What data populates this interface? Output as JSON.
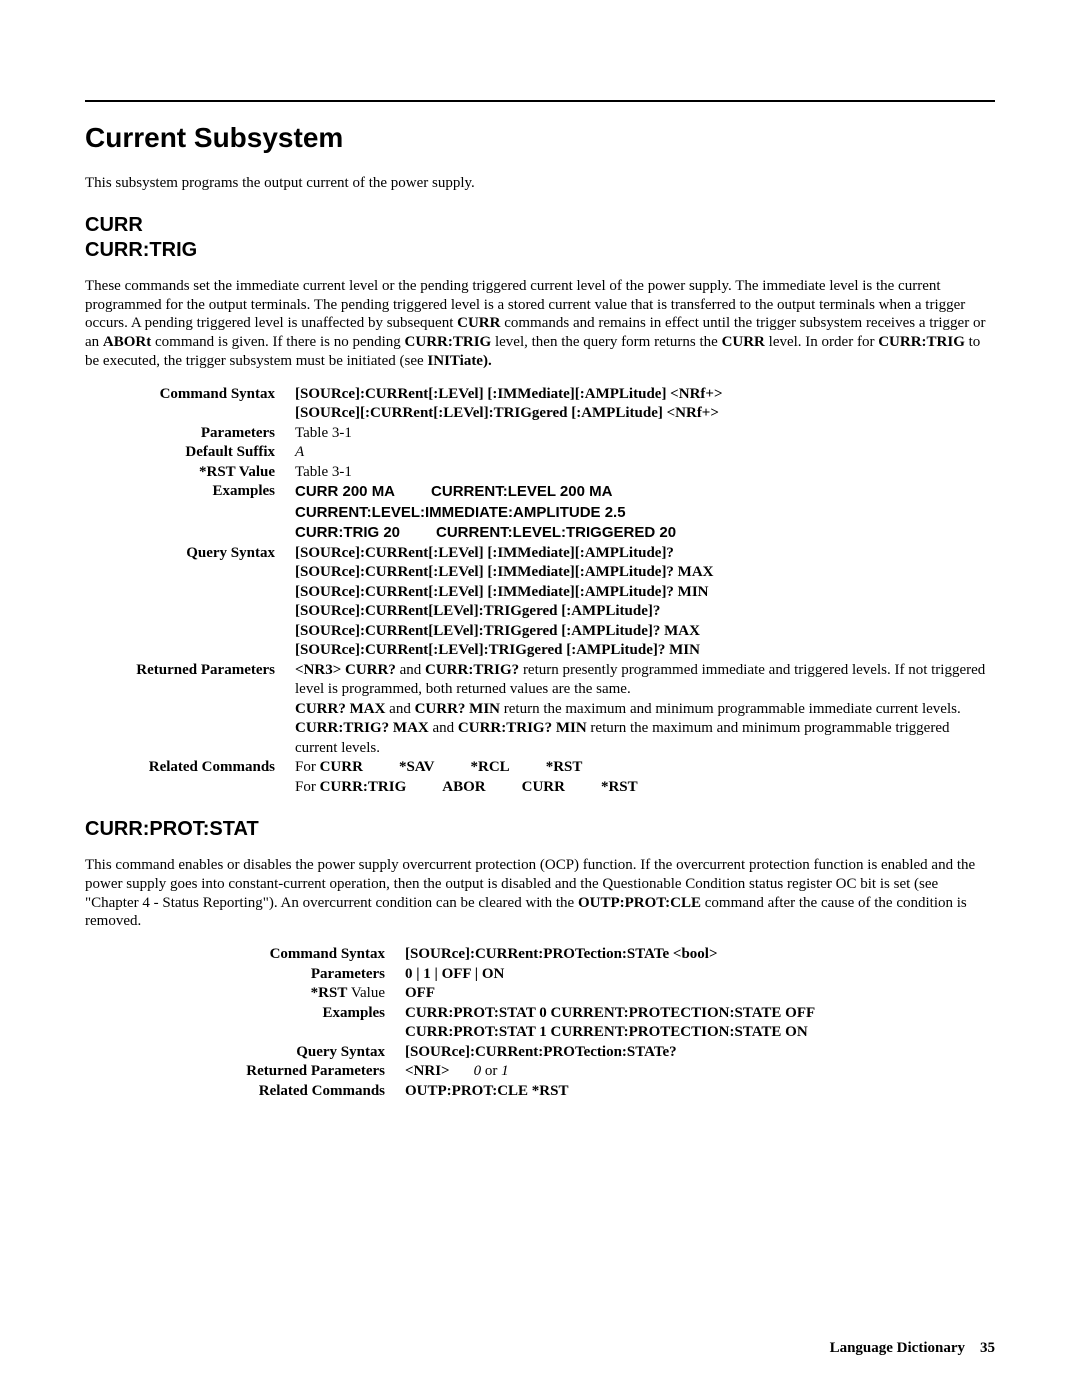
{
  "h1": "Current Subsystem",
  "intro": "This subsystem programs the output current of the power supply.",
  "sec1": {
    "h2a": "CURR",
    "h2b": "CURR:TRIG",
    "para_parts": [
      "These commands set the immediate current level or the pending triggered current level of the power supply.  The immediate level is the current programmed for the output terminals.  The pending triggered level is a stored current value that is transferred to the output terminals when a trigger occurs.  A pending triggered level is unaffected by subsequent ",
      "CURR",
      " commands and remains in effect until the trigger subsystem receives a trigger or an ",
      "ABORt",
      " command is given.  If there is no pending ",
      "CURR:TRIG",
      " level, then the query form returns the ",
      "CURR",
      " level.  In order for ",
      "CURR:TRIG",
      " to be executed, the trigger subsystem must be initiated (see ",
      "INITiate)."
    ],
    "rows": {
      "command_syntax_label": "Command Syntax",
      "command_syntax_1": "[SOURce]:CURRent[:LEVel] [:IMMediate][:AMPLitude] <NRf+>",
      "command_syntax_2": "[SOURce][:CURRent[:LEVel]:TRIGgered [:AMPLitude] <NRf+>",
      "parameters_label": "Parameters",
      "parameters_val": "Table 3-1",
      "default_suffix_label": "Default Suffix",
      "default_suffix_val": "A",
      "rst_label": "*RST Value",
      "rst_val": "Table 3-1",
      "examples_label": "Examples",
      "ex1a": "CURR 200 MA",
      "ex1b": "CURRENT:LEVEL 200 MA",
      "ex2": "CURRENT:LEVEL:IMMEDIATE:AMPLITUDE 2.5",
      "ex3a": "CURR:TRIG 20",
      "ex3b": "CURRENT:LEVEL:TRIGGERED 20",
      "query_label": "Query Syntax",
      "q1": "[SOURce]:CURRent[:LEVel] [:IMMediate][:AMPLitude]?",
      "q2": "[SOURce]:CURRent[:LEVel] [:IMMediate][:AMPLitude]?  MAX",
      "q3": "[SOURce]:CURRent[:LEVel] [:IMMediate][:AMPLitude]?  MIN",
      "q4": "[SOURce]:CURRent[LEVel]:TRIGgered [:AMPLitude]?",
      "q5": "[SOURce]:CURRent[LEVel]:TRIGgered [:AMPLitude]?  MAX",
      "q6": "[SOURce]:CURRent[:LEVel]:TRIGgered [:AMPLitude]?  MIN",
      "returned_label": "Returned Parameters",
      "rp1a": "<NR3> CURR?",
      "rp1b": " and ",
      "rp1c": "CURR:TRIG?",
      "rp1d": " return presently programmed immediate and triggered levels.  If not triggered level is programmed, both returned values are the same.",
      "rp2a": "CURR?  MAX",
      "rp2b": " and ",
      "rp2c": "CURR?  MIN",
      "rp2d": " return the maximum and minimum programmable immediate current levels.",
      "rp3a": "CURR:TRIG?  MAX",
      "rp3b": " and ",
      "rp3c": "CURR:TRIG?  MIN",
      "rp3d": " return the maximum and minimum programmable triggered current levels.",
      "related_label": "Related Commands",
      "rel1_for": "For ",
      "rel1_a": "CURR",
      "rel1_b": "*SAV",
      "rel1_c": "*RCL",
      "rel1_d": "*RST",
      "rel2_for": "For ",
      "rel2_a": "CURR:TRIG",
      "rel2_b": "ABOR",
      "rel2_c": "CURR",
      "rel2_d": "*RST"
    }
  },
  "sec2": {
    "h2": "CURR:PROT:STAT",
    "para_parts": [
      "This command enables or disables the power supply overcurrent protection (OCP) function.  If the overcurrent protection function is enabled and the power supply goes into constant-current operation, then the output is disabled and the Questionable Condition status register OC bit is set (see \"Chapter 4 - Status Reporting\").  An overcurrent condition can be cleared with the ",
      "OUTP:PROT:CLE",
      " command after the cause of the condition is removed."
    ],
    "rows": {
      "command_syntax_label": "Command Syntax",
      "command_syntax_val": "[SOURce]:CURRent:PROTection:STATe <bool>",
      "parameters_label": "Parameters",
      "parameters_val": "0 | 1 | OFF | ON",
      "rst_label_a": "*RST",
      "rst_label_b": " Value",
      "rst_val": "OFF",
      "examples_label": "Examples",
      "ex1": "CURR:PROT:STAT 0     CURRENT:PROTECTION:STATE OFF",
      "ex2": "CURR:PROT:STAT 1  CURRENT:PROTECTION:STATE ON",
      "query_label": "Query Syntax",
      "query_val": "[SOURce]:CURRent:PROTection:STATe?",
      "returned_label": "Returned Parameters",
      "rp_a": "<NRI>",
      "rp_b": "0",
      "rp_c": " or ",
      "rp_d": "1",
      "related_label": "Related Commands",
      "related_val": "OUTP:PROT:CLE *RST"
    }
  },
  "footer": {
    "label": "Language Dictionary",
    "page": "35"
  }
}
